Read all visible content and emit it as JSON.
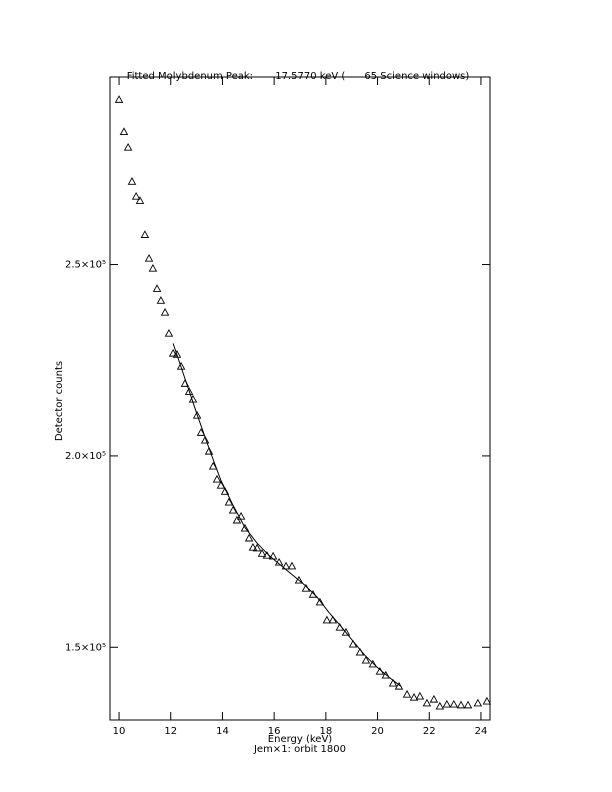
{
  "chart_data": {
    "type": "scatter",
    "title": "Fitted Molybdenum Peak:       17.5770 keV (      65 Science windows)",
    "x_label": "Energy (keV)",
    "subtitle": "Jem×1: orbit 1800",
    "y_label": "Detector counts",
    "marker": "triangle",
    "color": "#000000",
    "x": [
      10.0,
      10.19,
      10.35,
      10.5,
      10.66,
      10.81,
      11.0,
      11.16,
      11.31,
      11.47,
      11.62,
      11.78,
      11.93,
      12.09,
      12.24,
      12.4,
      12.55,
      12.71,
      12.86,
      13.02,
      13.17,
      13.33,
      13.48,
      13.64,
      13.79,
      13.94,
      14.1,
      14.25,
      14.41,
      14.56,
      14.72,
      14.87,
      15.03,
      15.18,
      15.34,
      15.53,
      15.72,
      15.96,
      16.19,
      16.46,
      16.69,
      16.96,
      17.23,
      17.5,
      17.77,
      18.04,
      18.27,
      18.54,
      18.78,
      19.05,
      19.32,
      19.55,
      19.82,
      20.09,
      20.32,
      20.6,
      20.83,
      21.14,
      21.41,
      21.64,
      21.91,
      22.18,
      22.41,
      22.68,
      22.95,
      23.23,
      23.5,
      23.88,
      24.23
    ],
    "values": [
      293100,
      284700,
      280600,
      271700,
      267800,
      266700,
      257800,
      251600,
      249000,
      243700,
      240600,
      237500,
      232000,
      226800,
      226500,
      223400,
      218900,
      216800,
      214800,
      210600,
      206100,
      204100,
      201200,
      197300,
      193900,
      192300,
      190700,
      187900,
      185800,
      183200,
      184200,
      181100,
      178500,
      176100,
      175900,
      174500,
      174000,
      173800,
      172200,
      171200,
      171200,
      167500,
      165400,
      163800,
      161800,
      157100,
      157100,
      155200,
      153900,
      150800,
      148700,
      146600,
      145600,
      143700,
      142700,
      140600,
      139800,
      137700,
      136900,
      137200,
      135400,
      136400,
      134600,
      135100,
      135100,
      134900,
      134900,
      135400,
      135900
    ],
    "fit_x": [
      12.09,
      12.55,
      13.02,
      13.48,
      13.94,
      14.41,
      14.87,
      15.34,
      15.8,
      16.26,
      16.73,
      17.19,
      17.66,
      18.12,
      18.58,
      19.05,
      19.51,
      19.98,
      20.44,
      20.9
    ],
    "fit_values": [
      229400,
      220200,
      210800,
      202000,
      193600,
      187100,
      181300,
      177200,
      174000,
      171400,
      168800,
      166200,
      163100,
      159100,
      155500,
      151600,
      147900,
      144800,
      142200,
      139800
    ],
    "xlim": [
      9.65,
      24.35
    ],
    "ylim": [
      131000,
      299000
    ],
    "xticks": [
      10,
      12,
      14,
      16,
      18,
      20,
      22,
      24
    ],
    "yticks": [
      {
        "value": 150000,
        "label": "1.5×10⁵"
      },
      {
        "value": 200000,
        "label": "2.0×10⁵"
      },
      {
        "value": 250000,
        "label": "2.5×10⁵"
      }
    ]
  }
}
